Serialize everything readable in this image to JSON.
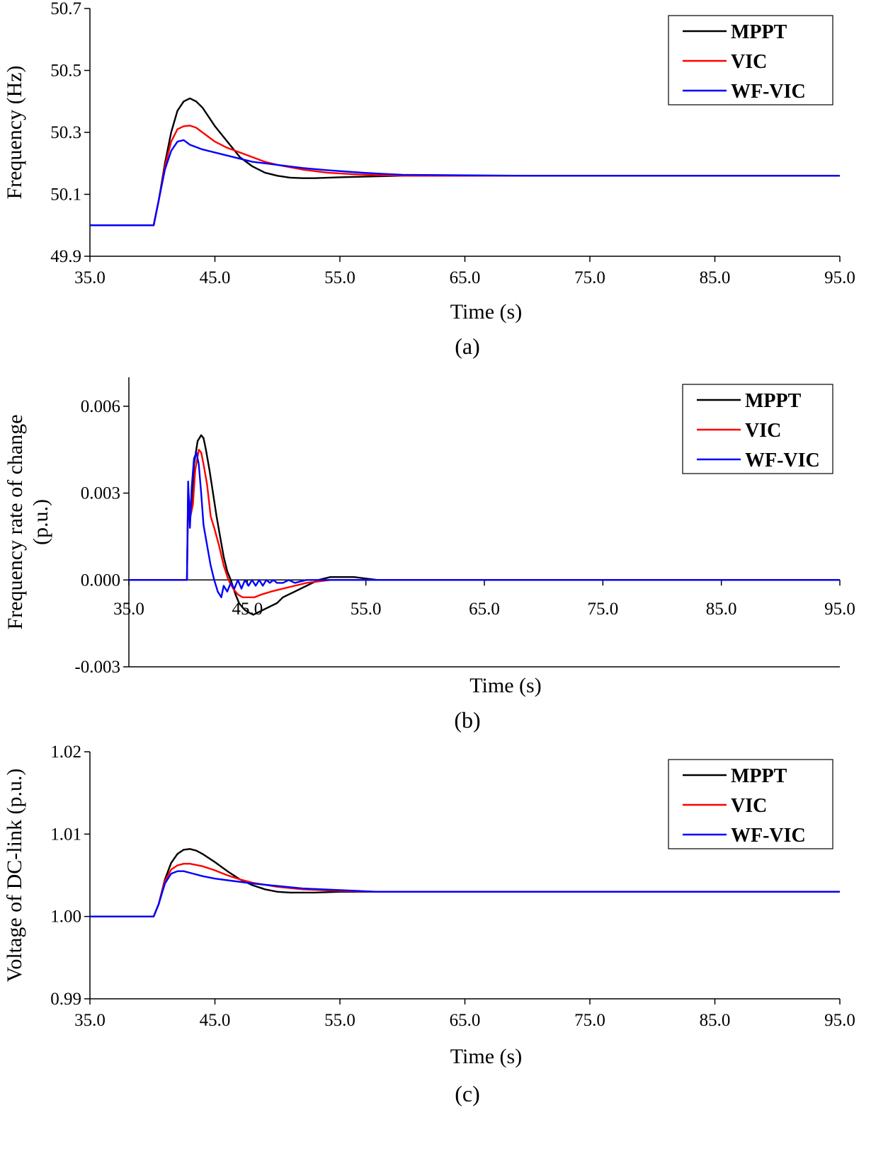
{
  "chart_data": [
    {
      "type": "line",
      "panel_label": "(a)",
      "xlabel": "Time (s)",
      "ylabel": "Frequency (Hz)",
      "ylabel_lines": [
        "Frequency (Hz)"
      ],
      "xlim": [
        35,
        95
      ],
      "ylim": [
        49.9,
        50.7
      ],
      "xticks": [
        35,
        45,
        55,
        65,
        75,
        85,
        95
      ],
      "xtick_labels": [
        "35.0",
        "45.0",
        "55.0",
        "65.0",
        "75.0",
        "85.0",
        "95.0"
      ],
      "yticks": [
        49.9,
        50.1,
        50.3,
        50.5,
        50.7
      ],
      "ytick_labels": [
        "49.9",
        "50.1",
        "50.3",
        "50.5",
        "50.7"
      ],
      "legend_position": "top-right",
      "zero_line": false,
      "series": [
        {
          "name": "MPPT",
          "color": "#000000",
          "x": [
            35,
            40.1,
            40.5,
            41,
            41.5,
            42,
            42.5,
            43,
            43.5,
            44,
            44.5,
            45,
            46,
            47,
            48,
            49,
            50,
            51,
            52,
            53,
            55,
            58,
            60,
            70,
            95
          ],
          "y": [
            50.0,
            50.0,
            50.08,
            50.2,
            50.3,
            50.37,
            50.4,
            50.41,
            50.4,
            50.38,
            50.35,
            50.32,
            50.27,
            50.22,
            50.19,
            50.17,
            50.16,
            50.154,
            50.152,
            50.152,
            50.155,
            50.158,
            50.16,
            50.16,
            50.16
          ]
        },
        {
          "name": "VIC",
          "color": "#ff0000",
          "x": [
            35,
            40.1,
            40.5,
            41,
            41.5,
            42,
            42.5,
            43,
            43.5,
            44,
            45,
            46,
            47,
            48,
            49,
            50,
            52,
            54,
            56,
            58,
            60,
            70,
            95
          ],
          "y": [
            50.0,
            50.0,
            50.08,
            50.19,
            50.27,
            50.31,
            50.32,
            50.322,
            50.315,
            50.3,
            50.27,
            50.25,
            50.235,
            50.22,
            50.205,
            50.195,
            50.18,
            50.17,
            50.165,
            50.162,
            50.16,
            50.16,
            50.16
          ]
        },
        {
          "name": "WF-VIC",
          "color": "#0000ff",
          "x": [
            35,
            40.1,
            40.5,
            41,
            41.5,
            42,
            42.5,
            43,
            44,
            45,
            46,
            48,
            50,
            52,
            54,
            56,
            58,
            60,
            70,
            95
          ],
          "y": [
            50.0,
            50.0,
            50.08,
            50.18,
            50.24,
            50.27,
            50.275,
            50.26,
            50.245,
            50.235,
            50.225,
            50.205,
            50.195,
            50.185,
            50.178,
            50.172,
            50.167,
            50.163,
            50.16,
            50.16
          ]
        }
      ]
    },
    {
      "type": "line",
      "panel_label": "(b)",
      "xlabel": "Time (s)",
      "ylabel": "Frequency rate of change (p.u.)",
      "ylabel_lines": [
        "Frequency rate of change",
        "(p.u.)"
      ],
      "xlim": [
        35,
        95
      ],
      "ylim": [
        -0.003,
        0.007
      ],
      "xticks": [
        35,
        45,
        55,
        65,
        75,
        85,
        95
      ],
      "xtick_labels": [
        "35.0",
        "45.0",
        "55.0",
        "65.0",
        "75.0",
        "85.0",
        "95.0"
      ],
      "yticks": [
        -0.003,
        0.0,
        0.003,
        0.006
      ],
      "ytick_labels": [
        "-0.003",
        "0.000",
        "0.003",
        "0.006"
      ],
      "legend_position": "top-right",
      "zero_line": true,
      "series": [
        {
          "name": "MPPT",
          "color": "#000000",
          "x": [
            35,
            39.9,
            40.0,
            40.2,
            40.3,
            40.5,
            40.8,
            41.1,
            41.3,
            41.5,
            41.8,
            42.1,
            42.4,
            42.7,
            43.0,
            43.3,
            43.6,
            44.0,
            44.3,
            44.7,
            45.0,
            45.5,
            46.0,
            46.5,
            47.0,
            47.5,
            48.0,
            49.0,
            50.0,
            51.0,
            52.0,
            53.0,
            54.0,
            55.0,
            56.0,
            57.0,
            58.0,
            60.0,
            95.0
          ],
          "y": [
            0,
            0,
            0.0028,
            0.0022,
            0.0026,
            0.004,
            0.0048,
            0.005,
            0.0049,
            0.0045,
            0.0038,
            0.003,
            0.0022,
            0.0015,
            0.0008,
            0.0003,
            0.0,
            -0.0005,
            -0.0008,
            -0.001,
            -0.0011,
            -0.0012,
            -0.0011,
            -0.001,
            -0.0009,
            -0.0008,
            -0.0006,
            -0.0004,
            -0.0002,
            0.0,
            0.0001,
            0.0001,
            0.0001,
            5e-05,
            0.0,
            0.0,
            0.0,
            0.0,
            0.0
          ]
        },
        {
          "name": "VIC",
          "color": "#ff0000",
          "x": [
            35,
            39.9,
            40.0,
            40.2,
            40.4,
            40.6,
            40.9,
            41.1,
            41.3,
            41.6,
            41.9,
            42.2,
            42.6,
            43.0,
            43.4,
            43.8,
            44.2,
            44.6,
            45.0,
            45.6,
            46.2,
            47.0,
            48.0,
            49.0,
            50.0,
            52.0,
            55.0,
            95.0
          ],
          "y": [
            0,
            0,
            0.0032,
            0.0022,
            0.0026,
            0.0038,
            0.0045,
            0.0044,
            0.004,
            0.0033,
            0.0022,
            0.0018,
            0.0012,
            0.0005,
            0.0,
            -0.0003,
            -0.0005,
            -0.0006,
            -0.0006,
            -0.0006,
            -0.0005,
            -0.0004,
            -0.0003,
            -0.0002,
            -0.0001,
            0.0,
            0.0,
            0.0
          ]
        },
        {
          "name": "WF-VIC",
          "color": "#0000ff",
          "x": [
            35,
            39.9,
            40.0,
            40.15,
            40.3,
            40.5,
            40.7,
            40.9,
            41.1,
            41.3,
            41.6,
            41.9,
            42.2,
            42.5,
            42.8,
            43.0,
            43.3,
            43.6,
            43.9,
            44.2,
            44.5,
            44.8,
            45.1,
            45.4,
            45.7,
            46.0,
            46.3,
            46.6,
            46.9,
            47.2,
            47.5,
            48.0,
            48.5,
            49.0,
            50.0,
            51.0,
            52.0,
            95.0
          ],
          "y": [
            0,
            0,
            0.0034,
            0.0018,
            0.0032,
            0.0042,
            0.0044,
            0.004,
            0.003,
            0.0019,
            0.0012,
            0.0005,
            0.0,
            -0.0004,
            -0.0006,
            -0.0002,
            -0.0004,
            -0.0001,
            -0.0003,
            0.0,
            -0.0003,
            0.0,
            -0.0002,
            0.0,
            -0.0002,
            0.0,
            -0.0002,
            0.0,
            -0.0001,
            0.0,
            -0.0001,
            -0.0001,
            0.0,
            -0.0001,
            0.0,
            0.0,
            0.0,
            0.0
          ]
        }
      ]
    },
    {
      "type": "line",
      "panel_label": "(c)",
      "xlabel": "Time (s)",
      "ylabel": "Voltage of DC-link  (p.u.)",
      "ylabel_lines": [
        "Voltage of DC-link  (p.u.)"
      ],
      "xlim": [
        35,
        95
      ],
      "ylim": [
        0.99,
        1.02
      ],
      "xticks": [
        35,
        45,
        55,
        65,
        75,
        85,
        95
      ],
      "xtick_labels": [
        "35.0",
        "45.0",
        "55.0",
        "65.0",
        "75.0",
        "85.0",
        "95.0"
      ],
      "yticks": [
        0.99,
        1.0,
        1.01,
        1.02
      ],
      "ytick_labels": [
        "0.99",
        "1.00",
        "1.01",
        "1.02"
      ],
      "legend_position": "top-right",
      "zero_line": false,
      "series": [
        {
          "name": "MPPT",
          "color": "#000000",
          "x": [
            35,
            40.1,
            40.5,
            41,
            41.5,
            42,
            42.5,
            43,
            43.5,
            44,
            45,
            46,
            47,
            48,
            49,
            50,
            51,
            52,
            53,
            55,
            58,
            60,
            95
          ],
          "y": [
            1.0,
            1.0,
            1.0015,
            1.0045,
            1.0065,
            1.0076,
            1.0081,
            1.0082,
            1.008,
            1.0076,
            1.0066,
            1.0055,
            1.0045,
            1.0038,
            1.0033,
            1.003,
            1.0029,
            1.0029,
            1.0029,
            1.003,
            1.003,
            1.003,
            1.003
          ]
        },
        {
          "name": "VIC",
          "color": "#ff0000",
          "x": [
            35,
            40.1,
            40.5,
            41,
            41.5,
            42,
            42.5,
            43,
            44,
            45,
            46,
            47,
            48,
            50,
            52,
            55,
            58,
            60,
            95
          ],
          "y": [
            1.0,
            1.0,
            1.0015,
            1.0043,
            1.0057,
            1.0062,
            1.0064,
            1.0064,
            1.0061,
            1.0056,
            1.005,
            1.0045,
            1.0041,
            1.0036,
            1.0033,
            1.0031,
            1.003,
            1.003,
            1.003
          ]
        },
        {
          "name": "WF-VIC",
          "color": "#0000ff",
          "x": [
            35,
            40.1,
            40.5,
            41,
            41.5,
            42,
            42.5,
            43,
            44,
            45,
            46,
            48,
            50,
            52,
            55,
            58,
            60,
            95
          ],
          "y": [
            1.0,
            1.0,
            1.0015,
            1.004,
            1.0052,
            1.0055,
            1.0055,
            1.0053,
            1.0049,
            1.0046,
            1.0044,
            1.004,
            1.0037,
            1.0034,
            1.0032,
            1.003,
            1.003,
            1.003
          ]
        }
      ]
    }
  ]
}
